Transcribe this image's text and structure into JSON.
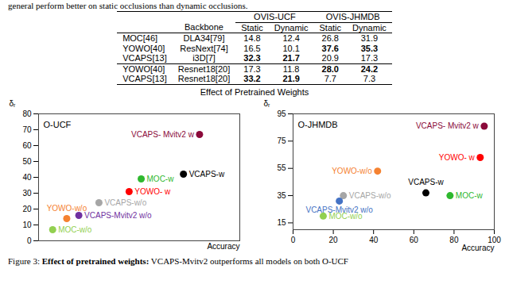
{
  "caption_top": "general perform better on static occlusions than dynamic occlusions.",
  "table": {
    "groups": [
      "OVIS-UCF",
      "OVIS-JHMDB"
    ],
    "columns": [
      "",
      "Backbone",
      "Static",
      "Dynamic",
      "Static",
      "Dynamic"
    ],
    "row_groups": [
      [
        {
          "cells": [
            "MOC[46]",
            "DLA34[79]",
            "14.8",
            "12.4",
            "26.8",
            "31.9"
          ],
          "bold": []
        },
        {
          "cells": [
            "YOWO[40]",
            "ResNext[74]",
            "16.5",
            "10.1",
            "37.6",
            "35.3"
          ],
          "bold": [
            4,
            5
          ]
        },
        {
          "cells": [
            "VCAPS[13]",
            "i3D[7]",
            "32.3",
            "21.7",
            "20.9",
            "17.3"
          ],
          "bold": [
            2,
            3
          ]
        }
      ],
      [
        {
          "cells": [
            "YOWO[40]",
            "Resnet18[20]",
            "17.3",
            "11.8",
            "28.0",
            "24.2"
          ],
          "bold": [
            4,
            5
          ]
        },
        {
          "cells": [
            "VCAPS[13]",
            "Resnet18[20]",
            "33.2",
            "21.9",
            "7.7",
            "7.3"
          ],
          "bold": [
            2,
            3
          ]
        }
      ]
    ]
  },
  "figure_title": "Effect of Pretrained Weights",
  "chart_data": [
    {
      "type": "scatter",
      "title": "O-UCF",
      "x_label": "Accuracy",
      "y_label": "δᵣ",
      "labels": [
        "VCAPS- Mvitv2 w",
        "VCAPS-w",
        "MOC-w",
        "YOWO- w",
        "VCAPS-w/o",
        "VCAPS-Mvitv2 w/o",
        "YOWO-w/o",
        "MOC-w/o"
      ],
      "x": [
        80,
        72,
        51,
        45,
        30,
        20,
        14,
        7
      ],
      "values": [
        67,
        42,
        39,
        31,
        24,
        16,
        14,
        7
      ],
      "colors": [
        "#8b0a3a",
        "#000000",
        "#2eb82e",
        "#ff0000",
        "#a6a6a6",
        "#7030a0",
        "#f58231",
        "#92d050"
      ],
      "xlim": [
        0,
        100
      ],
      "ylim": [
        0,
        80
      ],
      "yticks": [
        0,
        10,
        20,
        30,
        40,
        50,
        60,
        70,
        80
      ],
      "tick_labels": "y"
    },
    {
      "type": "scatter",
      "title": "O-JHMDB",
      "x_label": "Accuracy",
      "y_label": "δᵣ",
      "labels": [
        "VCAPS- Mvitv2 w",
        "YOWO- w",
        "YOWO-w/o",
        "VCAPS-w",
        "MOC-w",
        "VCAPS-w/o",
        "VCAPS-Mvitv2 w/o",
        "MOC-w/o"
      ],
      "x": [
        95,
        93,
        42,
        66,
        78,
        25,
        23,
        15
      ],
      "values": [
        86,
        63,
        53,
        37,
        35,
        35,
        31,
        20
      ],
      "colors": [
        "#8b0a3a",
        "#ff0000",
        "#f58231",
        "#000000",
        "#2eb82e",
        "#a6a6a6",
        "#4472c4",
        "#92d050"
      ],
      "xlim": [
        0,
        100
      ],
      "ylim": [
        10,
        95
      ],
      "xticks": [
        0,
        20,
        40,
        60,
        80,
        100
      ],
      "yticks": [
        15,
        35,
        55,
        75,
        95
      ]
    }
  ],
  "caption_bottom": [
    {
      "text": "Figure 3: ",
      "bold": false
    },
    {
      "text": "Effect of pretrained weights:",
      "bold": true
    },
    {
      "text": " VCAPS-Mvitv2 outperforms all models on both O-UCF",
      "bold": false
    }
  ]
}
